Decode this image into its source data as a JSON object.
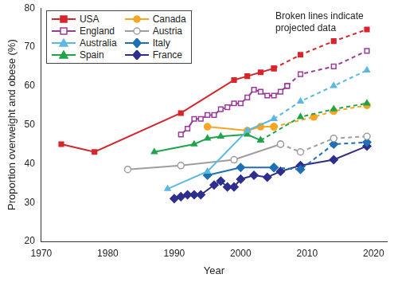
{
  "chart_data": {
    "type": "line",
    "annotation": [
      "Broken lines indicate",
      "projected data"
    ],
    "x_label": "Year",
    "y_label": "Proportion overweight and obese (%)",
    "xlim": [
      1970,
      2022
    ],
    "xticks": [
      1970,
      1980,
      1990,
      2000,
      2010,
      2020
    ],
    "ylim": [
      20,
      80
    ],
    "yticks": [
      20,
      30,
      40,
      50,
      60,
      70,
      80
    ],
    "grid": false,
    "legend": "upper left",
    "series": [
      {
        "name": "USA",
        "color": "#d7262b",
        "marker": "square",
        "line_style": "solid",
        "x": [
          1973,
          1978,
          1991,
          1999,
          2001,
          2003,
          2005
        ],
        "values": [
          45,
          43,
          53,
          61.5,
          62.5,
          63.5,
          64.5
        ]
      },
      {
        "name": "USA",
        "color": "#d7262b",
        "marker": "square",
        "line_style": "dashed",
        "x": [
          2005,
          2009,
          2014,
          2019
        ],
        "values": [
          64.5,
          68,
          71.5,
          74.5
        ]
      },
      {
        "name": "England",
        "color": "#9b3a9b",
        "marker": "square_open",
        "line_style": "solid",
        "x": [
          1991,
          1992,
          1993,
          1994,
          1995,
          1996,
          1997,
          1998,
          1999,
          2000,
          2001,
          2002,
          2003,
          2004,
          2005,
          2006,
          2007
        ],
        "values": [
          47.5,
          49,
          51.5,
          51.5,
          52.5,
          52.5,
          54,
          54.5,
          55.5,
          55.5,
          57,
          59,
          58.5,
          57.5,
          57.5,
          58.5,
          60
        ]
      },
      {
        "name": "England",
        "color": "#9b3a9b",
        "marker": "square_open",
        "line_style": "dashed",
        "x": [
          2007,
          2009,
          2014,
          2019
        ],
        "values": [
          60,
          63,
          65,
          69
        ]
      },
      {
        "name": "Australia",
        "color": "#5bb8e0",
        "marker": "triangle",
        "line_style": "solid",
        "x": [
          1989,
          1995,
          2001,
          2005
        ],
        "values": [
          33.5,
          38,
          48.5,
          51.5
        ]
      },
      {
        "name": "Australia",
        "color": "#5bb8e0",
        "marker": "triangle",
        "line_style": "dashed",
        "x": [
          2005,
          2009,
          2014,
          2019
        ],
        "values": [
          51.5,
          56,
          60,
          64
        ]
      },
      {
        "name": "Spain",
        "color": "#1fa44a",
        "marker": "triangle",
        "line_style": "solid",
        "x": [
          1987,
          1993,
          1995,
          1997,
          2001,
          2003
        ],
        "values": [
          43,
          45,
          46.5,
          47,
          47.5,
          46
        ]
      },
      {
        "name": "Spain",
        "color": "#1fa44a",
        "marker": "triangle",
        "line_style": "dashed",
        "x": [
          2003,
          2009,
          2014,
          2019
        ],
        "values": [
          46,
          52,
          54,
          55.5
        ]
      },
      {
        "name": "Canada",
        "color": "#f5a623",
        "marker": "circle",
        "line_style": "solid",
        "x": [
          1995,
          2001,
          2003,
          2005
        ],
        "values": [
          49.5,
          48.5,
          49.5,
          49.5
        ]
      },
      {
        "name": "Canada",
        "color": "#f5a623",
        "marker": "circle",
        "line_style": "dashed",
        "x": [
          2005,
          2011,
          2014,
          2019
        ],
        "values": [
          49.5,
          52,
          53.5,
          55
        ]
      },
      {
        "name": "Austria",
        "color": "#9e9e9e",
        "marker": "circle_open",
        "line_style": "solid",
        "x": [
          1983,
          1991,
          1999,
          2006
        ],
        "values": [
          38.5,
          39.5,
          41,
          45
        ]
      },
      {
        "name": "Austria",
        "color": "#9e9e9e",
        "marker": "circle_open",
        "line_style": "dashed",
        "x": [
          2006,
          2009,
          2014,
          2019
        ],
        "values": [
          45,
          43,
          46.5,
          47
        ]
      },
      {
        "name": "Italy",
        "color": "#1f6fb5",
        "marker": "diamond",
        "line_style": "solid",
        "x": [
          1995,
          2000,
          2005
        ],
        "values": [
          37,
          39,
          39
        ]
      },
      {
        "name": "Italy",
        "color": "#1f6fb5",
        "marker": "diamond",
        "line_style": "dashed",
        "x": [
          2005,
          2009,
          2014,
          2019
        ],
        "values": [
          39,
          38.5,
          45,
          45.5
        ]
      },
      {
        "name": "France",
        "color": "#2e2e8e",
        "marker": "diamond",
        "line_style": "solid",
        "x": [
          1990,
          1991,
          1992,
          1993,
          1994,
          1996,
          1997,
          1998,
          1999,
          2000,
          2002,
          2004,
          2006,
          2009,
          2014,
          2019
        ],
        "values": [
          31,
          31.5,
          32,
          32,
          32,
          34.5,
          35.5,
          34,
          34,
          36,
          37,
          36.5,
          38,
          39.5,
          41,
          44.5
        ]
      }
    ]
  }
}
